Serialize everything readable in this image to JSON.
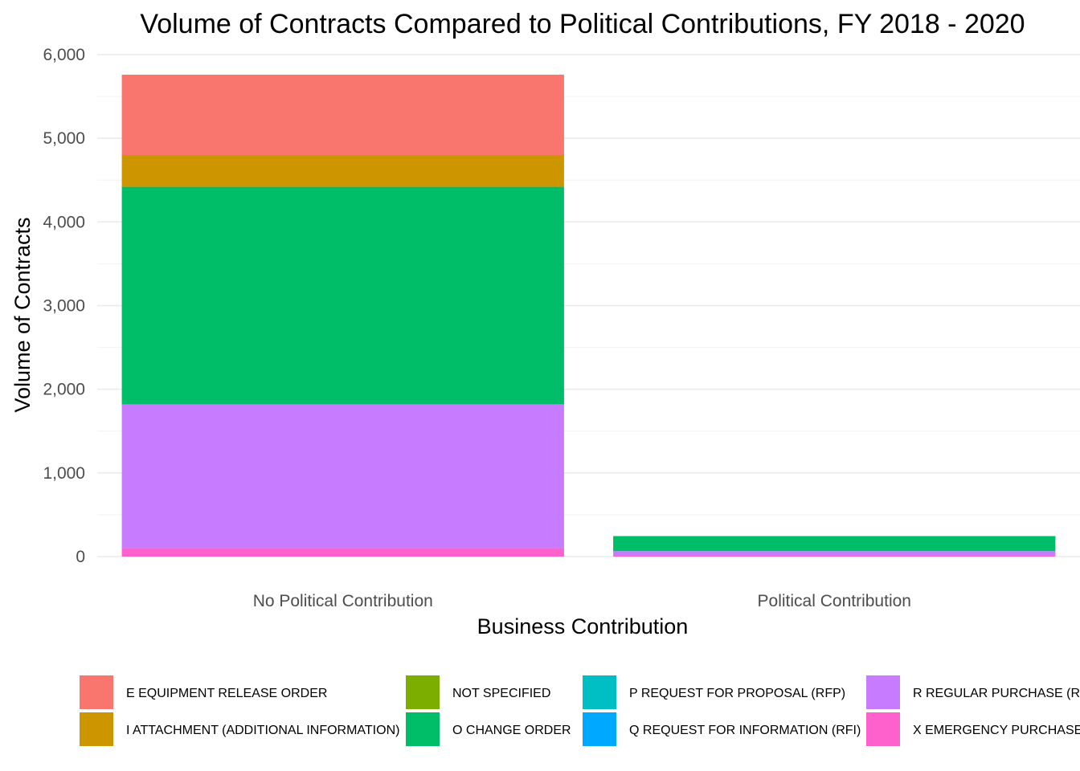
{
  "chart_data": {
    "type": "bar",
    "stacked": true,
    "title": "Volume of Contracts Compared to Political Contributions, FY 2018 - 2020",
    "xlabel": "Business Contribution",
    "ylabel": "Volume of Contracts",
    "ylim": [
      0,
      6000
    ],
    "yticks": [
      0,
      1000,
      2000,
      3000,
      4000,
      5000,
      6000
    ],
    "ytick_labels": [
      "0",
      "1,000",
      "2,000",
      "3,000",
      "4,000",
      "5,000",
      "6,000"
    ],
    "grid": true,
    "legend_position": "bottom",
    "categories": [
      "No Political Contribution",
      "Political Contribution"
    ],
    "series": [
      {
        "name": "E EQUIPMENT RELEASE ORDER",
        "color": "#F8766D",
        "values": [
          960,
          0
        ]
      },
      {
        "name": "I ATTACHMENT (ADDITIONAL INFORMATION)",
        "color": "#CD9600",
        "values": [
          380,
          0
        ]
      },
      {
        "name": "NOT SPECIFIED",
        "color": "#7CAE00",
        "values": [
          0,
          0
        ]
      },
      {
        "name": "O CHANGE ORDER",
        "color": "#00BE67",
        "values": [
          2600,
          180
        ]
      },
      {
        "name": "P REQUEST FOR PROPOSAL (RFP)",
        "color": "#00BFC4",
        "values": [
          0,
          0
        ]
      },
      {
        "name": "Q REQUEST FOR INFORMATION (RFI)",
        "color": "#00A9FF",
        "values": [
          0,
          0
        ]
      },
      {
        "name": "R REGULAR PURCHASE (RF",
        "color": "#C77CFF",
        "values": [
          1720,
          50
        ]
      },
      {
        "name": "X EMERGENCY PURCHASE",
        "color": "#FF61CC",
        "values": [
          100,
          15
        ]
      }
    ]
  }
}
